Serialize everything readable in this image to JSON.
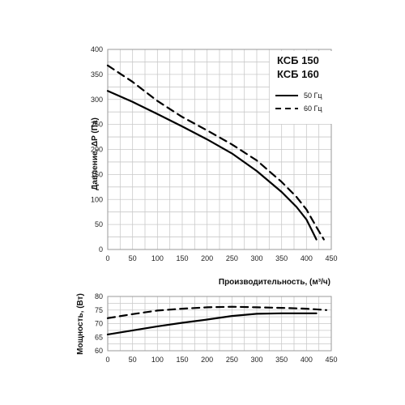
{
  "chart_data": [
    {
      "type": "line",
      "model_lines": [
        "КСБ 150",
        "КСБ 160"
      ],
      "xlabel": "Производительность, (м³/ч)",
      "ylabel": "Давление, ΔP (Па)",
      "xlim": [
        0,
        450
      ],
      "ylim": [
        0,
        400
      ],
      "x_ticks": [
        0,
        50,
        100,
        150,
        200,
        250,
        300,
        350,
        400,
        450
      ],
      "y_ticks": [
        0,
        50,
        100,
        150,
        200,
        250,
        300,
        350,
        400
      ],
      "grid": true,
      "legend_position": "top-right",
      "series": [
        {
          "name": "50 Гц",
          "style": "solid",
          "color": "#000000",
          "x": [
            0,
            50,
            100,
            150,
            200,
            250,
            300,
            350,
            380,
            400,
            410,
            420
          ],
          "y": [
            317,
            295,
            271,
            246,
            220,
            192,
            157,
            115,
            85,
            60,
            40,
            20
          ]
        },
        {
          "name": "60 Гц",
          "style": "dashed",
          "color": "#000000",
          "x": [
            0,
            50,
            100,
            150,
            200,
            250,
            300,
            350,
            380,
            400,
            420,
            435
          ],
          "y": [
            368,
            335,
            297,
            265,
            238,
            210,
            178,
            135,
            105,
            80,
            45,
            20
          ]
        }
      ]
    },
    {
      "type": "line",
      "xlabel": "",
      "ylabel": "Мощность, (Вт)",
      "xlim": [
        0,
        450
      ],
      "ylim": [
        60,
        80
      ],
      "x_ticks": [
        0,
        50,
        100,
        150,
        200,
        250,
        300,
        350,
        400,
        450
      ],
      "y_ticks": [
        60,
        65,
        70,
        75,
        80
      ],
      "grid": true,
      "series": [
        {
          "name": "50 Гц",
          "style": "solid",
          "color": "#000000",
          "x": [
            0,
            50,
            100,
            150,
            200,
            250,
            300,
            350,
            420
          ],
          "y": [
            66,
            67.5,
            69,
            70.3,
            71.5,
            72.8,
            73.6,
            73.8,
            73.8
          ]
        },
        {
          "name": "60 Гц",
          "style": "dashed",
          "color": "#000000",
          "x": [
            0,
            50,
            100,
            150,
            200,
            250,
            300,
            350,
            400,
            440
          ],
          "y": [
            72,
            73.5,
            74.8,
            75.5,
            76,
            76.2,
            76,
            75.8,
            75.5,
            75
          ]
        }
      ]
    }
  ]
}
